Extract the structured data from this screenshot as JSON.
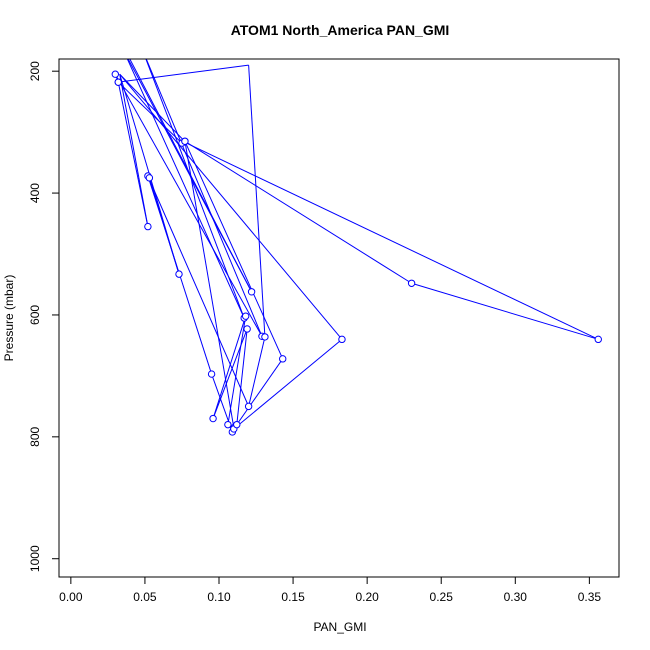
{
  "chart_data": {
    "type": "line",
    "title": "ATOM1 North_America PAN_GMI",
    "xlabel": "PAN_GMI",
    "ylabel": "Pressure (mbar)",
    "xlim": [
      -0.008,
      0.37
    ],
    "ylim": [
      1030,
      180
    ],
    "y_reversed": true,
    "grid": false,
    "legend": "none",
    "x_ticks": [
      0.0,
      0.05,
      0.1,
      0.15,
      0.2,
      0.25,
      0.3,
      0.35
    ],
    "x_tick_labels": [
      "0.00",
      "0.05",
      "0.10",
      "0.15",
      "0.20",
      "0.25",
      "0.30",
      "0.35"
    ],
    "y_ticks": [
      200,
      400,
      600,
      800,
      1000
    ],
    "y_tick_labels": [
      "200",
      "400",
      "600",
      "800",
      "1000"
    ],
    "series": [
      {
        "color": "#0000ff",
        "marker": "open-circle",
        "points": [
          {
            "x": 0.0355,
            "y": 160
          },
          {
            "x": 0.122,
            "y": 562
          },
          {
            "x": 0.035,
            "y": 163
          },
          {
            "x": 0.117,
            "y": 605
          },
          {
            "x": 0.048,
            "y": 163
          },
          {
            "x": 0.129,
            "y": 635
          },
          {
            "x": 0.03,
            "y": 205
          },
          {
            "x": 0.032,
            "y": 218
          },
          {
            "x": 0.075,
            "y": 318
          },
          {
            "x": 0.077,
            "y": 315
          },
          {
            "x": 0.11,
            "y": 785
          },
          {
            "x": 0.109,
            "y": 792
          },
          {
            "x": 0.095,
            "y": 697
          },
          {
            "x": 0.052,
            "y": 372
          },
          {
            "x": 0.12,
            "y": 750
          },
          {
            "x": 0.131,
            "y": 636
          },
          {
            "x": 0.12,
            "y": 190
          },
          {
            "x": 0.032,
            "y": 218
          },
          {
            "x": 0.052,
            "y": 455
          },
          {
            "x": 0.033,
            "y": 205
          },
          {
            "x": 0.183,
            "y": 640
          },
          {
            "x": 0.11,
            "y": 787
          },
          {
            "x": 0.106,
            "y": 780
          },
          {
            "x": 0.118,
            "y": 602
          },
          {
            "x": 0.096,
            "y": 770
          },
          {
            "x": 0.119,
            "y": 623
          },
          {
            "x": 0.112,
            "y": 780
          },
          {
            "x": 0.143,
            "y": 672
          },
          {
            "x": 0.077,
            "y": 315
          },
          {
            "x": 0.23,
            "y": 548
          },
          {
            "x": 0.356,
            "y": 640
          },
          {
            "x": 0.078,
            "y": 318
          },
          {
            "x": 0.033,
            "y": 205
          },
          {
            "x": 0.073,
            "y": 533
          },
          {
            "x": 0.053,
            "y": 375
          }
        ],
        "marked": [
          false,
          true,
          false,
          true,
          false,
          true,
          true,
          true,
          true,
          true,
          true,
          true,
          true,
          true,
          true,
          true,
          false,
          true,
          true,
          false,
          true,
          true,
          true,
          true,
          true,
          true,
          true,
          true,
          true,
          true,
          true,
          false,
          false,
          true,
          true
        ]
      }
    ]
  }
}
